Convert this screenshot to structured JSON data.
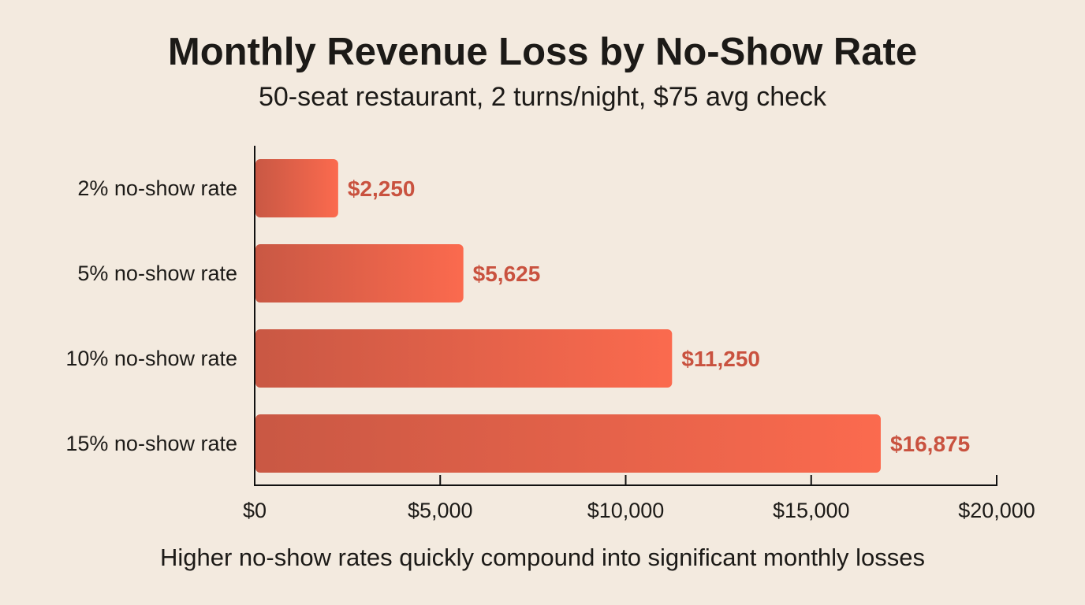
{
  "chart_data": {
    "type": "bar",
    "orientation": "horizontal",
    "title": "Monthly Revenue Loss by No-Show Rate",
    "subtitle": "50-seat restaurant, 2 turns/night, $75 avg check",
    "caption": "Higher no-show rates quickly compound into significant monthly losses",
    "categories": [
      "2% no-show rate",
      "5% no-show rate",
      "10% no-show rate",
      "15% no-show rate"
    ],
    "values": [
      2250,
      5625,
      11250,
      16875
    ],
    "data_labels": [
      "$2,250",
      "$5,625",
      "$11,250",
      "$16,875"
    ],
    "xlim": [
      0,
      20000
    ],
    "xticks": [
      0,
      5000,
      10000,
      15000,
      20000
    ],
    "xtick_labels": [
      "$0",
      "$5,000",
      "$10,000",
      "$15,000",
      "$20,000"
    ],
    "xlabel": "",
    "ylabel": "",
    "grid": false,
    "colors": {
      "bar_start": "#c95844",
      "bar_end": "#fb6a4e",
      "label": "#c9523f",
      "background": "#f3eadf"
    }
  }
}
